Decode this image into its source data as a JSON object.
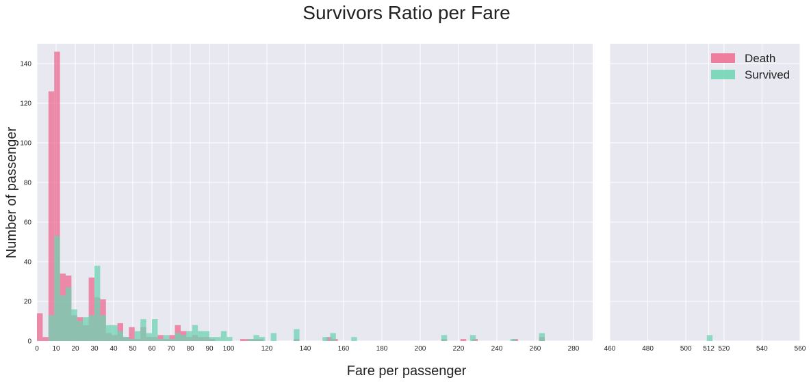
{
  "chart_data": {
    "type": "bar",
    "title": "Survivors Ratio per Fare",
    "xlabel": "Fare per passenger",
    "ylabel": "Number of passenger",
    "ylim": [
      0,
      150
    ],
    "grid": true,
    "legend_position": "top-right",
    "colors": {
      "background": "#e8e8f1",
      "grid": "#ffffff",
      "death": "#ee6a8f",
      "survived": "#6fd3b1"
    },
    "yticks": [
      0,
      20,
      40,
      60,
      80,
      100,
      120,
      140
    ],
    "panels": [
      {
        "name": "left",
        "xlim": [
          0,
          290
        ],
        "xticks": [
          0,
          10,
          20,
          30,
          40,
          50,
          60,
          70,
          80,
          90,
          100,
          120,
          140,
          160,
          180,
          200,
          220,
          240,
          260,
          280
        ]
      },
      {
        "name": "right",
        "xlim": [
          460,
          560
        ],
        "xticks": [
          460,
          480,
          500,
          512,
          520,
          540,
          560
        ]
      }
    ],
    "series": [
      {
        "name": "Death",
        "color": "#ee6a8f",
        "bars": [
          [
            0,
            3,
            14
          ],
          [
            3,
            6,
            2
          ],
          [
            6,
            9,
            126
          ],
          [
            9,
            12,
            146
          ],
          [
            12,
            15,
            34
          ],
          [
            15,
            18,
            33
          ],
          [
            18,
            21,
            13
          ],
          [
            21,
            24,
            12
          ],
          [
            24,
            27,
            8
          ],
          [
            27,
            30,
            32
          ],
          [
            30,
            33,
            22
          ],
          [
            33,
            36,
            21
          ],
          [
            36,
            39,
            4
          ],
          [
            39,
            42,
            3
          ],
          [
            42,
            45,
            9
          ],
          [
            45,
            48,
            2
          ],
          [
            48,
            51,
            7
          ],
          [
            51,
            54,
            1
          ],
          [
            54,
            57,
            7
          ],
          [
            57,
            60,
            2
          ],
          [
            60,
            63,
            2
          ],
          [
            63,
            66,
            3
          ],
          [
            66,
            69,
            1
          ],
          [
            69,
            72,
            3
          ],
          [
            72,
            75,
            8
          ],
          [
            75,
            78,
            5
          ],
          [
            78,
            81,
            2
          ],
          [
            81,
            84,
            3
          ],
          [
            84,
            87,
            2
          ],
          [
            87,
            90,
            2
          ],
          [
            90,
            93,
            1
          ],
          [
            106,
            109,
            1
          ],
          [
            109,
            112,
            1
          ],
          [
            112,
            115,
            1
          ],
          [
            115,
            118,
            1
          ],
          [
            134,
            137,
            1
          ],
          [
            151,
            154,
            2
          ],
          [
            154,
            157,
            1
          ],
          [
            211,
            214,
            1
          ],
          [
            221,
            224,
            1
          ],
          [
            227,
            230,
            1
          ],
          [
            248,
            251,
            1
          ],
          [
            262,
            265,
            2
          ]
        ]
      },
      {
        "name": "Survived",
        "color": "#6fd3b1",
        "bars": [
          [
            6,
            9,
            13
          ],
          [
            9,
            12,
            53
          ],
          [
            12,
            15,
            23
          ],
          [
            15,
            18,
            27
          ],
          [
            18,
            21,
            16
          ],
          [
            21,
            24,
            10
          ],
          [
            24,
            27,
            12
          ],
          [
            27,
            30,
            13
          ],
          [
            30,
            33,
            38
          ],
          [
            33,
            36,
            13
          ],
          [
            36,
            39,
            8
          ],
          [
            39,
            42,
            8
          ],
          [
            42,
            45,
            5
          ],
          [
            45,
            48,
            2
          ],
          [
            48,
            51,
            1
          ],
          [
            51,
            54,
            5
          ],
          [
            54,
            57,
            11
          ],
          [
            57,
            60,
            4
          ],
          [
            60,
            63,
            11
          ],
          [
            63,
            66,
            1
          ],
          [
            66,
            69,
            3
          ],
          [
            69,
            72,
            1
          ],
          [
            72,
            75,
            4
          ],
          [
            75,
            78,
            3
          ],
          [
            78,
            81,
            5
          ],
          [
            81,
            84,
            8
          ],
          [
            84,
            87,
            5
          ],
          [
            87,
            90,
            5
          ],
          [
            90,
            93,
            2
          ],
          [
            93,
            96,
            2
          ],
          [
            96,
            99,
            5
          ],
          [
            99,
            102,
            2
          ],
          [
            110,
            113,
            1
          ],
          [
            113,
            116,
            3
          ],
          [
            116,
            119,
            2
          ],
          [
            122,
            125,
            4
          ],
          [
            134,
            137,
            6
          ],
          [
            149,
            152,
            2
          ],
          [
            153,
            156,
            4
          ],
          [
            164,
            167,
            2
          ],
          [
            211,
            214,
            3
          ],
          [
            226,
            229,
            3
          ],
          [
            247,
            250,
            1
          ],
          [
            262,
            265,
            4
          ],
          [
            511,
            514,
            3
          ]
        ]
      }
    ]
  }
}
